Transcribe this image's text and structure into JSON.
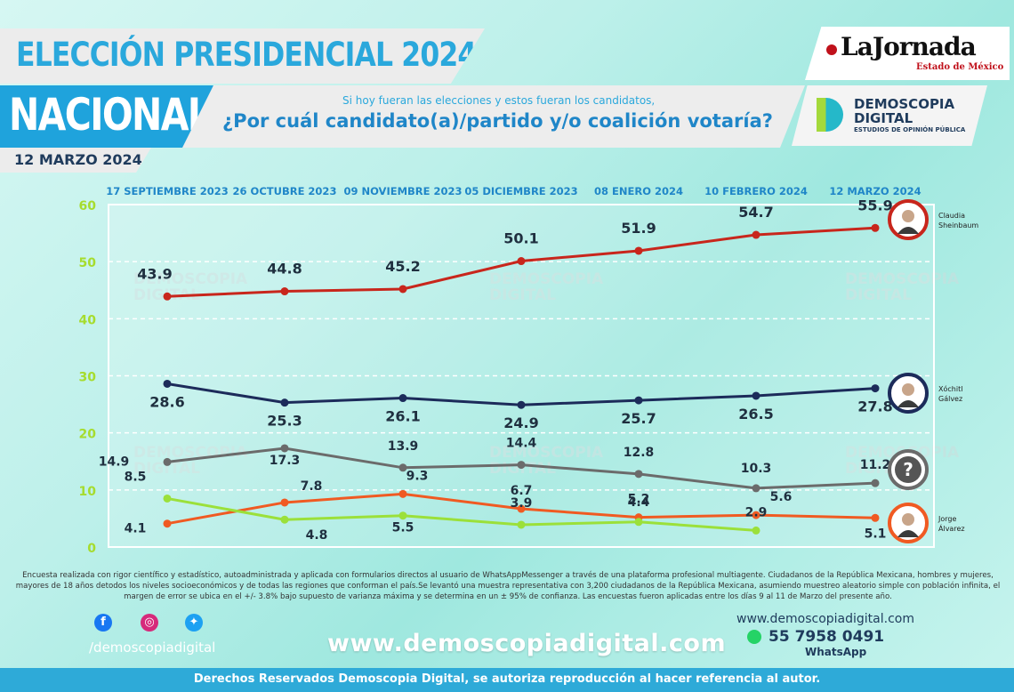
{
  "header": {
    "title": "ELECCIÓN PRESIDENCIAL 2024",
    "scope": "NACIONAL",
    "date": "12 MARZO 2024",
    "question_intro": "Si hoy fueran las elecciones y estos fueran los candidatos,",
    "question": "¿Por cuál candidato(a)/partido y/o coalición votaría?",
    "publisher": "LaJornada",
    "publisher_sub": "Estado de México",
    "brand_line1": "DEMOSCOPIA",
    "brand_line2": "DIGITAL",
    "brand_line3": "ESTUDIOS DE OPINIÓN PÚBLICA"
  },
  "chart_data": {
    "type": "line",
    "x": [
      "17 SEPTIEMBRE 2023",
      "26 OCTUBRE 2023",
      "09 NOVIEMBRE 2023",
      "05 DICIEMBRE 2023",
      "08 ENERO 2024",
      "10 FEBRERO 2024",
      "12 MARZO 2024"
    ],
    "ylim": [
      0,
      60
    ],
    "yticks": [
      "0",
      "10",
      "20",
      "30",
      "40",
      "50",
      "60"
    ],
    "grid": true,
    "series": [
      {
        "name": "Claudia Sheinbaum",
        "color": "#c8261c",
        "values": [
          43.9,
          44.8,
          45.2,
          50.1,
          51.9,
          54.7,
          55.9
        ],
        "labels": [
          "43.9",
          "44.8",
          "45.2",
          "50.1",
          "51.9",
          "54.7",
          "55.9"
        ]
      },
      {
        "name": "Xóchitl Gálvez",
        "color": "#1c2b5a",
        "values": [
          28.6,
          25.3,
          26.1,
          24.9,
          25.7,
          26.5,
          27.8
        ],
        "labels": [
          "28.6",
          "25.3",
          "26.1",
          "24.9",
          "25.7",
          "26.5",
          "27.8"
        ]
      },
      {
        "name": "",
        "color": "#6b6b6b",
        "values": [
          14.9,
          17.3,
          13.9,
          14.4,
          12.8,
          10.3,
          11.2
        ],
        "labels": [
          "14.9",
          "17.3",
          "13.9",
          "14.4",
          "12.8",
          "10.3",
          "11.2"
        ]
      },
      {
        "name": "Jorge Álvarez",
        "color": "#f05a22",
        "values": [
          4.1,
          7.8,
          9.3,
          6.7,
          5.2,
          5.6,
          5.1
        ],
        "labels": [
          "4.1",
          "7.8",
          "9.3",
          "6.7",
          "5.2",
          "5.6",
          "5.1"
        ]
      },
      {
        "name": "",
        "color": "#9be03a",
        "values": [
          8.5,
          4.8,
          5.5,
          3.9,
          4.4,
          2.9,
          null
        ],
        "labels": [
          "8.5",
          "4.8",
          "5.5",
          "3.9",
          "4.4",
          "2.9",
          ""
        ]
      }
    ],
    "candidates": [
      {
        "line1": "Claudia",
        "line2": "Sheinbaum",
        "ring": "#c8261c"
      },
      {
        "line1": "Xóchitl",
        "line2": "Gálvez",
        "ring": "#1c2b5a"
      },
      {
        "line1": "?",
        "line2": "",
        "ring": "#6b6b6b"
      },
      {
        "line1": "Jorge",
        "line2": "Álvarez",
        "ring": "#f05a22"
      }
    ]
  },
  "footnote": "Encuesta realizada con rigor científico y estadístico, autoadministrada y aplicada con formularios directos al usuario de WhatsAppMessenger a través de una plataforma profesional multiagente. Ciudadanos de la República Mexicana, hombres y mujeres, mayores de 18 años detodos los niveles socioeconómicos y de todas las regiones que conforman el país.Se levantó una muestra representativa con 3,200 ciudadanos de la República Mexicana, asumiendo muestreo aleatorio simple con población infinita, el margen de error se ubica en el +/- 3.8% bajo supuesto de varianza máxima y se determina en un ± 95% de confianza. Las encuestas fueron aplicadas entre los días 9 al 11 de Marzo del presente año.",
  "footer": {
    "handle": "/demoscopiadigital",
    "website_big": "www.demoscopiadigital.com",
    "website_small": "www.demoscopiadigital.com",
    "phone": "55 7958 0491",
    "whatsapp": "WhatsApp",
    "rights": "Derechos Reservados Demoscopia Digital, se autoriza reproducción al hacer referencia al autor."
  },
  "icons": [
    "facebook-icon",
    "instagram-icon",
    "twitter-icon",
    "whatsapp-icon"
  ]
}
